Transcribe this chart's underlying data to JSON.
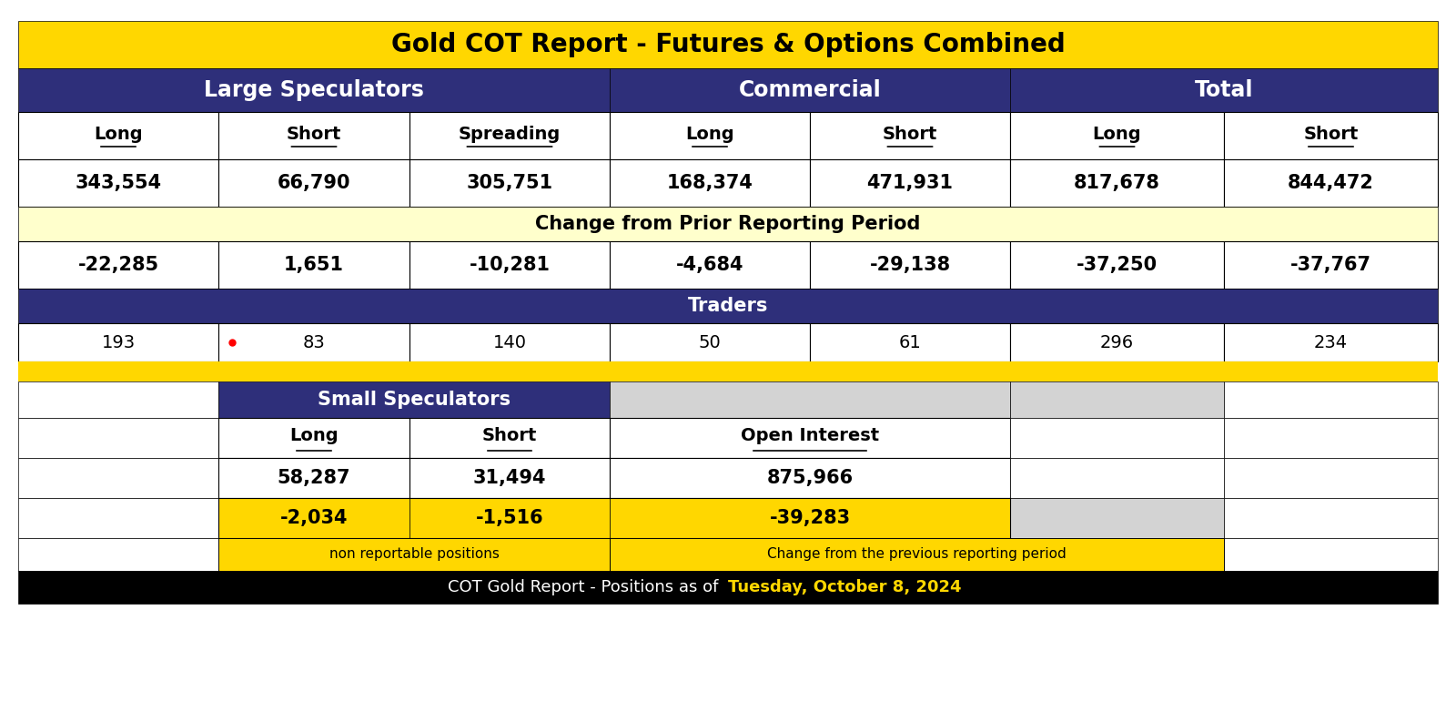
{
  "title": "Gold COT Report - Futures & Options Combined",
  "footer": "COT Gold Report - Positions as of ",
  "footer_date": "Tuesday, October 8, 2024",
  "colors": {
    "gold": "#FFD700",
    "dark_gold": "#DAA520",
    "navy": "#2E2F7A",
    "white": "#FFFFFF",
    "black": "#000000",
    "light_yellow": "#FFFFCC",
    "gray": "#BEBEBE",
    "light_gray": "#D3D3D3"
  },
  "large_spec": {
    "long": "343,554",
    "short": "66,790",
    "spreading": "305,751"
  },
  "commercial": {
    "long": "168,374",
    "short": "471,931"
  },
  "total": {
    "long": "817,678",
    "short": "844,472"
  },
  "change_large_spec": {
    "long": "-22,285",
    "short": "1,651",
    "spreading": "-10,281"
  },
  "change_commercial": {
    "long": "-4,684",
    "short": "-29,138"
  },
  "change_total": {
    "long": "-37,250",
    "short": "-37,767"
  },
  "traders_large_spec": {
    "long": "193",
    "short": "83",
    "spreading": "140"
  },
  "traders_commercial": {
    "long": "50",
    "short": "61"
  },
  "traders_total": {
    "long": "296",
    "short": "234"
  },
  "small_spec": {
    "long": "58,287",
    "short": "31,494",
    "open_interest": "875,966"
  },
  "change_small_spec": {
    "long": "-2,034",
    "short": "-1,516",
    "open_interest": "-39,283"
  }
}
